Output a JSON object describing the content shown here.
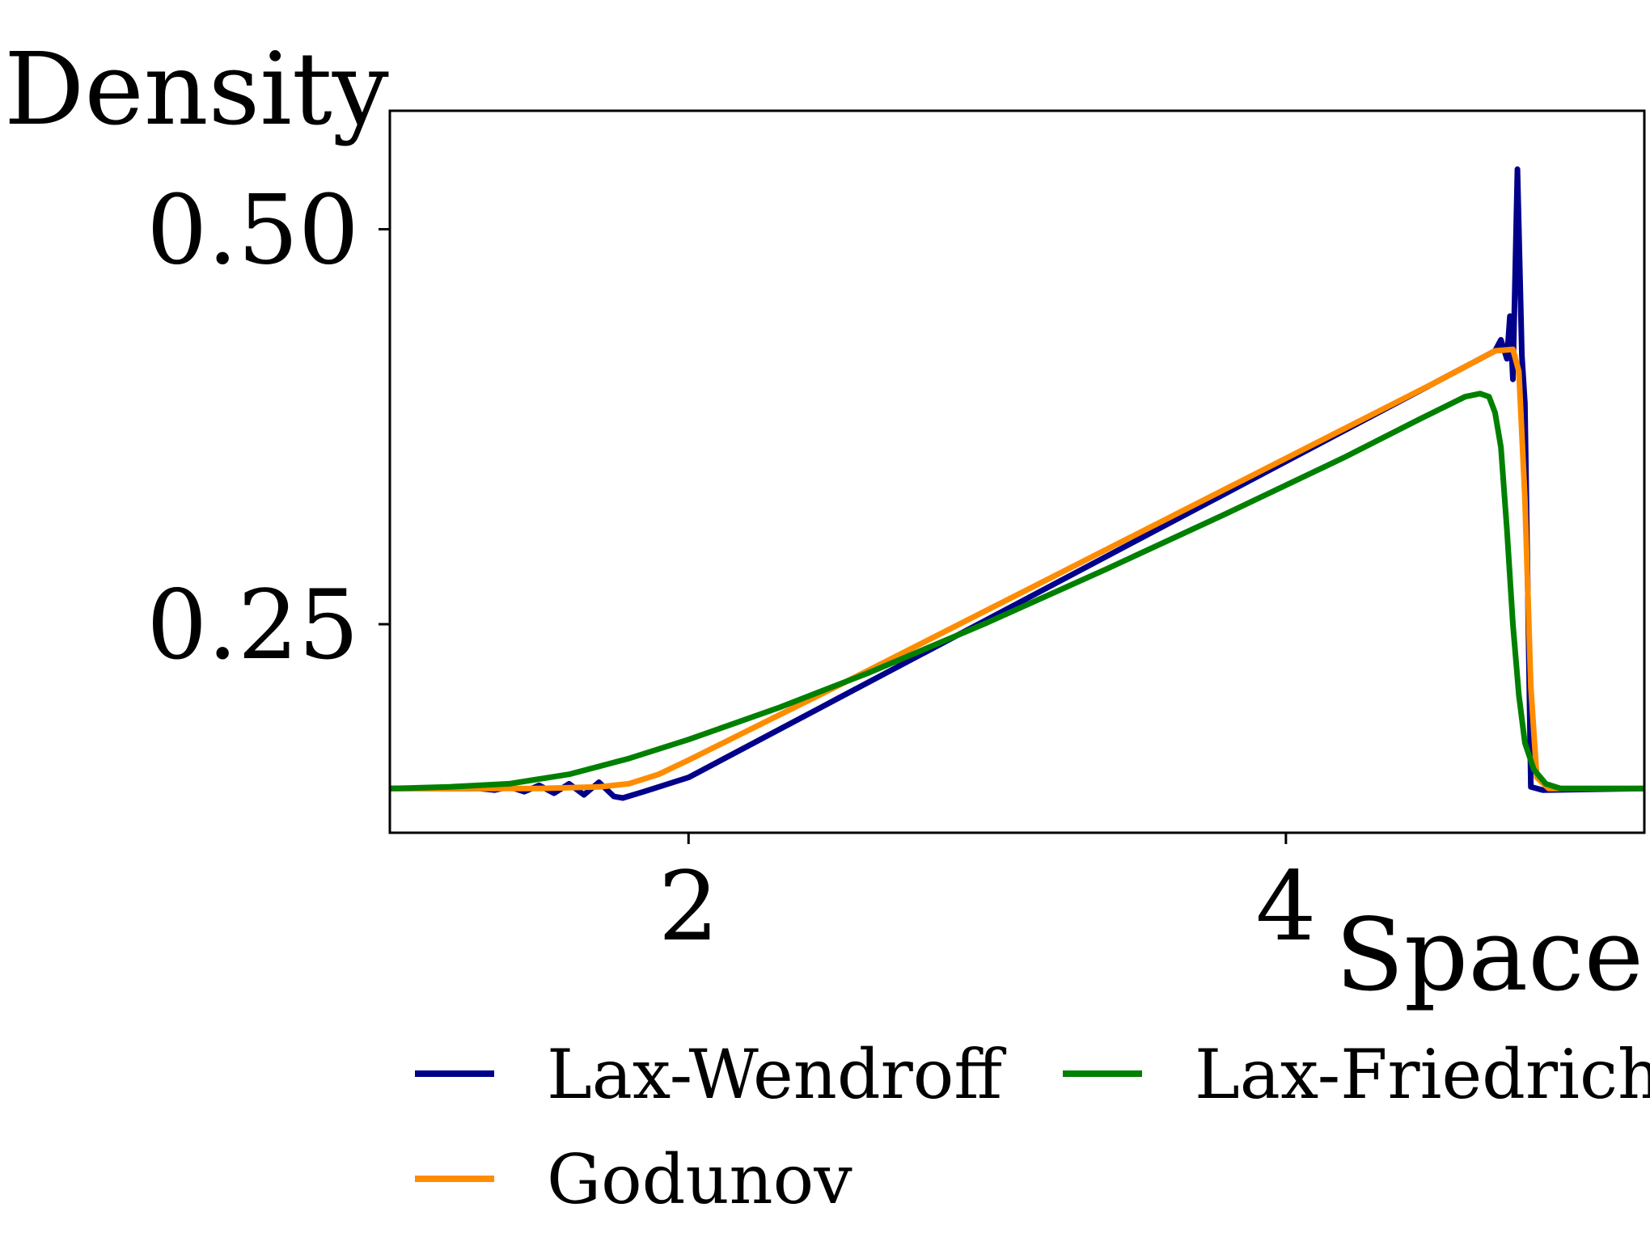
{
  "chart_data": {
    "type": "line",
    "title": "",
    "xlabel": "Space",
    "ylabel": "Density",
    "xlim": [
      1.0,
      5.2
    ],
    "ylim": [
      0.118,
      0.575
    ],
    "xticks": [
      2,
      4
    ],
    "xtick_labels": [
      "2",
      "4"
    ],
    "yticks": [
      0.25,
      0.5
    ],
    "ytick_labels": [
      "0.25",
      "0.50"
    ],
    "grid": false,
    "legend": {
      "placement": "bottom",
      "columns": 2
    },
    "series": [
      {
        "name": "Lax-Wendroff",
        "color": "#00008b",
        "points": [
          [
            1.0,
            0.146
          ],
          [
            1.3,
            0.146
          ],
          [
            1.35,
            0.145
          ],
          [
            1.4,
            0.147
          ],
          [
            1.45,
            0.144
          ],
          [
            1.5,
            0.148
          ],
          [
            1.55,
            0.143
          ],
          [
            1.6,
            0.149
          ],
          [
            1.65,
            0.142
          ],
          [
            1.7,
            0.15
          ],
          [
            1.75,
            0.141
          ],
          [
            1.78,
            0.14
          ],
          [
            1.85,
            0.144
          ],
          [
            2.0,
            0.153
          ],
          [
            2.5,
            0.203
          ],
          [
            3.0,
            0.253
          ],
          [
            3.5,
            0.303
          ],
          [
            4.0,
            0.353
          ],
          [
            4.5,
            0.403
          ],
          [
            4.65,
            0.418
          ],
          [
            4.7,
            0.423
          ],
          [
            4.72,
            0.43
          ],
          [
            4.74,
            0.418
          ],
          [
            4.75,
            0.445
          ],
          [
            4.76,
            0.405
          ],
          [
            4.775,
            0.538
          ],
          [
            4.79,
            0.42
          ],
          [
            4.8,
            0.39
          ],
          [
            4.82,
            0.147
          ],
          [
            4.86,
            0.145
          ],
          [
            5.2,
            0.146
          ]
        ]
      },
      {
        "name": "Godunov",
        "color": "#ff8c00",
        "points": [
          [
            1.0,
            0.146
          ],
          [
            1.5,
            0.146
          ],
          [
            1.7,
            0.147
          ],
          [
            1.8,
            0.149
          ],
          [
            1.9,
            0.155
          ],
          [
            2.0,
            0.164
          ],
          [
            2.5,
            0.211
          ],
          [
            3.0,
            0.259
          ],
          [
            3.5,
            0.307
          ],
          [
            4.0,
            0.355
          ],
          [
            4.5,
            0.403
          ],
          [
            4.7,
            0.423
          ],
          [
            4.76,
            0.424
          ],
          [
            4.78,
            0.41
          ],
          [
            4.8,
            0.33
          ],
          [
            4.82,
            0.21
          ],
          [
            4.84,
            0.153
          ],
          [
            4.88,
            0.146
          ],
          [
            5.2,
            0.146
          ]
        ]
      },
      {
        "name": "Lax-Friedrichs",
        "color": "#008000",
        "points": [
          [
            1.0,
            0.146
          ],
          [
            1.2,
            0.147
          ],
          [
            1.4,
            0.149
          ],
          [
            1.6,
            0.155
          ],
          [
            1.8,
            0.165
          ],
          [
            2.0,
            0.177
          ],
          [
            2.3,
            0.197
          ],
          [
            2.6,
            0.219
          ],
          [
            3.0,
            0.251
          ],
          [
            3.4,
            0.285
          ],
          [
            3.8,
            0.32
          ],
          [
            4.2,
            0.356
          ],
          [
            4.45,
            0.38
          ],
          [
            4.6,
            0.394
          ],
          [
            4.65,
            0.396
          ],
          [
            4.68,
            0.394
          ],
          [
            4.7,
            0.384
          ],
          [
            4.72,
            0.362
          ],
          [
            4.74,
            0.31
          ],
          [
            4.76,
            0.25
          ],
          [
            4.78,
            0.205
          ],
          [
            4.8,
            0.175
          ],
          [
            4.83,
            0.158
          ],
          [
            4.87,
            0.149
          ],
          [
            4.92,
            0.146
          ],
          [
            5.2,
            0.146
          ]
        ]
      }
    ]
  }
}
